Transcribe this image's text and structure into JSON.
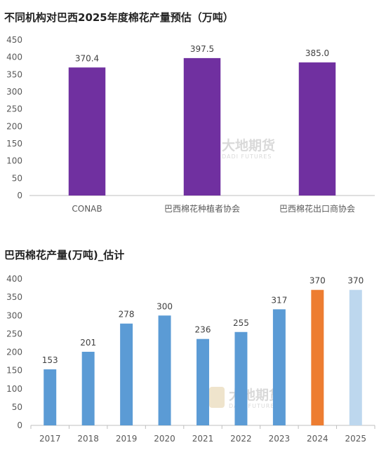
{
  "chart_data": [
    {
      "type": "bar",
      "title": "不同机构对巴西2025年度棉花产量预估（万吨）",
      "categories": [
        "CONAB",
        "巴西棉花种植者协会",
        "巴西棉花出口商协会"
      ],
      "values": [
        370.4,
        397.5,
        385.0
      ],
      "value_labels": [
        "370.4",
        "397.5",
        "385.0"
      ],
      "ylim": [
        0,
        450
      ],
      "yticks": [
        0,
        50,
        100,
        150,
        200,
        250,
        300,
        350,
        400,
        450
      ],
      "bar_color": "#7030A0",
      "grid": false,
      "legend": "none"
    },
    {
      "type": "bar",
      "title": "巴西棉花产量(万吨)_估计",
      "categories": [
        "2017",
        "2018",
        "2019",
        "2020",
        "2021",
        "2022",
        "2023",
        "2024",
        "2025"
      ],
      "values": [
        153,
        201,
        278,
        300,
        236,
        255,
        317,
        370,
        370
      ],
      "value_labels": [
        "153",
        "201",
        "278",
        "300",
        "236",
        "255",
        "317",
        "370",
        "370"
      ],
      "ylim": [
        0,
        400
      ],
      "yticks": [
        0,
        50,
        100,
        150,
        200,
        250,
        300,
        350,
        400
      ],
      "bar_colors": [
        "#5B9BD5",
        "#5B9BD5",
        "#5B9BD5",
        "#5B9BD5",
        "#5B9BD5",
        "#5B9BD5",
        "#5B9BD5",
        "#ED7D31",
        "#BDD7EE"
      ],
      "grid": false,
      "legend": "none"
    }
  ],
  "watermark": {
    "name": "大地期货",
    "name_en": "DADI FUTURES"
  }
}
